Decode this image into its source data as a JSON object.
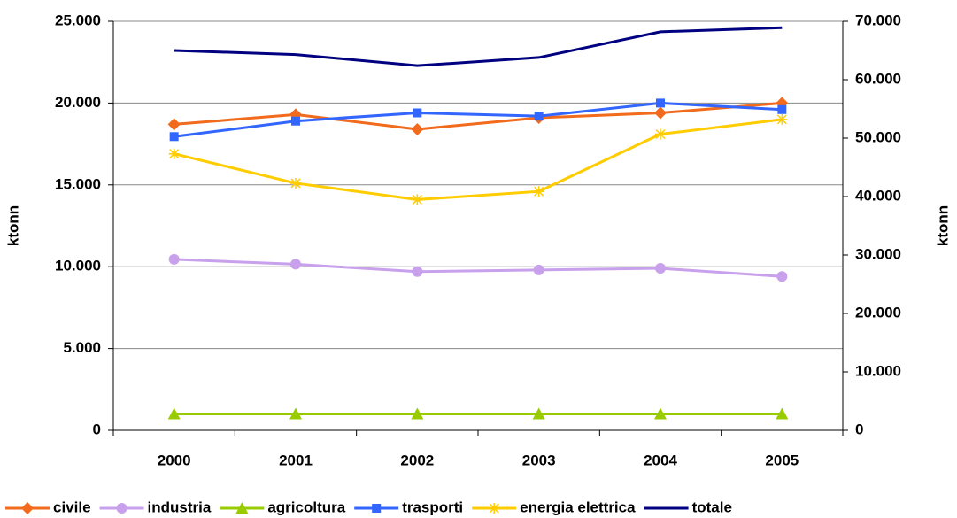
{
  "chart_data": {
    "type": "line",
    "y_label": "ktonn",
    "y2_label": "ktonn",
    "categories": [
      "2000",
      "2001",
      "2002",
      "2003",
      "2004",
      "2005"
    ],
    "ylim": [
      0,
      25000
    ],
    "yticks": [
      0,
      {
        "value": 5000,
        "label": "5.000"
      },
      {
        "value": 10000,
        "label": "10.000"
      },
      {
        "value": 15000,
        "label": "15.000"
      },
      {
        "value": 20000,
        "label": "20.000"
      },
      {
        "value": 25000,
        "label": "25.000"
      }
    ],
    "y2lim": [
      0,
      70000
    ],
    "y2ticks": [
      0,
      {
        "value": 10000,
        "label": "10.000"
      },
      {
        "value": 20000,
        "label": "20.000"
      },
      {
        "value": 30000,
        "label": "30.000"
      },
      {
        "value": 40000,
        "label": "40.000"
      },
      {
        "value": 50000,
        "label": "50.000"
      },
      {
        "value": 60000,
        "label": "60.000"
      },
      {
        "value": 70000,
        "label": "70.000"
      }
    ],
    "grid": true,
    "legend": "bottom",
    "series": [
      {
        "name": "civile",
        "color": "#f26a1b",
        "marker": "diamond",
        "values": [
          18700,
          19300,
          18400,
          19100,
          19400,
          20000
        ]
      },
      {
        "name": "industria",
        "color": "#c8a0ec",
        "marker": "circle",
        "values": [
          10450,
          10150,
          9700,
          9800,
          9900,
          9400
        ]
      },
      {
        "name": "agricoltura",
        "color": "#99cc00",
        "marker": "triangle",
        "values": [
          1000,
          1000,
          1000,
          1000,
          1000,
          1000
        ]
      },
      {
        "name": "trasporti",
        "color": "#3366ff",
        "marker": "square",
        "values": [
          17950,
          18900,
          19400,
          19200,
          20000,
          19600
        ]
      },
      {
        "name": "energia elettrica",
        "color": "#ffcc00",
        "marker": "star",
        "values": [
          16900,
          15100,
          14100,
          14600,
          18100,
          19000
        ]
      },
      {
        "name": "totale",
        "color": "#000080",
        "marker": "none",
        "axis": "y2",
        "values": [
          65000,
          64300,
          62400,
          63800,
          68200,
          68900
        ]
      }
    ]
  }
}
